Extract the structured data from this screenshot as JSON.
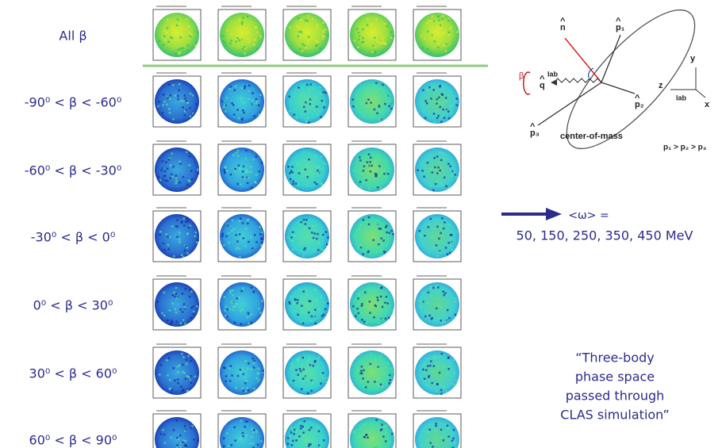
{
  "rows": [
    {
      "label": "All β"
    },
    {
      "label": "-90⁰ < β < -60⁰"
    },
    {
      "label": "-60⁰ < β < -30⁰"
    },
    {
      "label": "-30⁰ < β < 0⁰"
    },
    {
      "label": "0⁰ < β < 30⁰"
    },
    {
      "label": "30⁰ < β < 60⁰"
    },
    {
      "label": "60⁰ < β < 90⁰"
    }
  ],
  "diagram": {
    "n": "n",
    "p1": "p₁",
    "p2": "p₂",
    "p3": "p₃",
    "q": "q",
    "q_sup": "lab",
    "beta": "β",
    "cm": "center-of-mass",
    "y": "y",
    "z": "z",
    "x": "x",
    "lab": "lab",
    "order": "p₁ > p₂ > p₃"
  },
  "note": {
    "omega": "<ω> =",
    "energies": "50, 150, 250, 350, 450 MeV"
  },
  "caption": [
    "“Three-body",
    "phase space",
    "passed through",
    "CLAS simulation”"
  ]
}
